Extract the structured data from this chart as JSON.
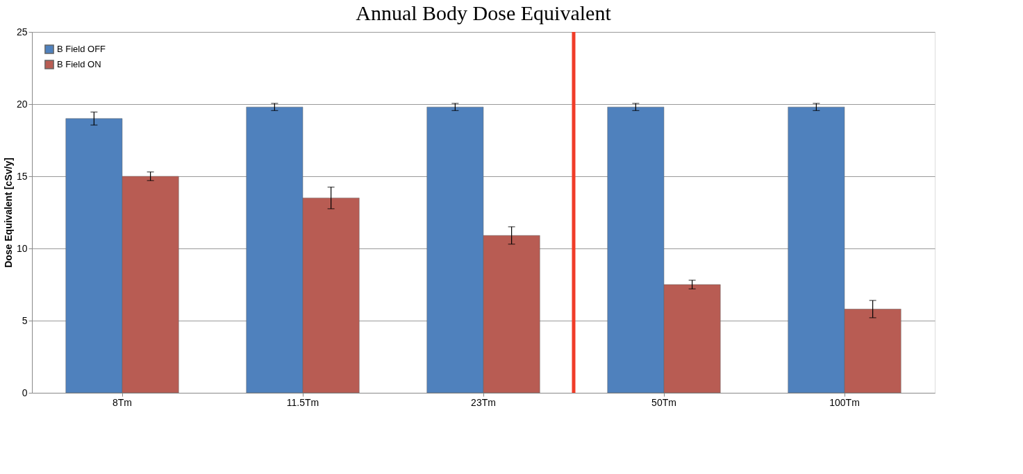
{
  "chart_data": {
    "type": "bar",
    "title": "Annual Body Dose Equivalent",
    "ylabel": "Dose Equivalent [cSv/y]",
    "categories": [
      "8Tm",
      "11.5Tm",
      "23Tm",
      "50Tm",
      "100Tm"
    ],
    "series": [
      {
        "name": "B Field OFF",
        "color": "#4f81bd",
        "values": [
          19.0,
          19.8,
          19.8,
          19.8,
          19.8
        ],
        "errors": [
          0.45,
          0.25,
          0.25,
          0.25,
          0.25
        ]
      },
      {
        "name": "B Field ON",
        "color": "#b85c53",
        "values": [
          15.0,
          13.5,
          10.9,
          7.5,
          5.8
        ],
        "errors": [
          0.3,
          0.75,
          0.6,
          0.3,
          0.6
        ]
      }
    ],
    "ylim": [
      0,
      25
    ],
    "yticks": [
      0,
      5,
      10,
      15,
      20,
      25
    ],
    "grid": "y",
    "legend": "top left",
    "ref_lines": [
      {
        "axis": "x",
        "value": "50Tm",
        "color": "#f03c28"
      }
    ]
  }
}
